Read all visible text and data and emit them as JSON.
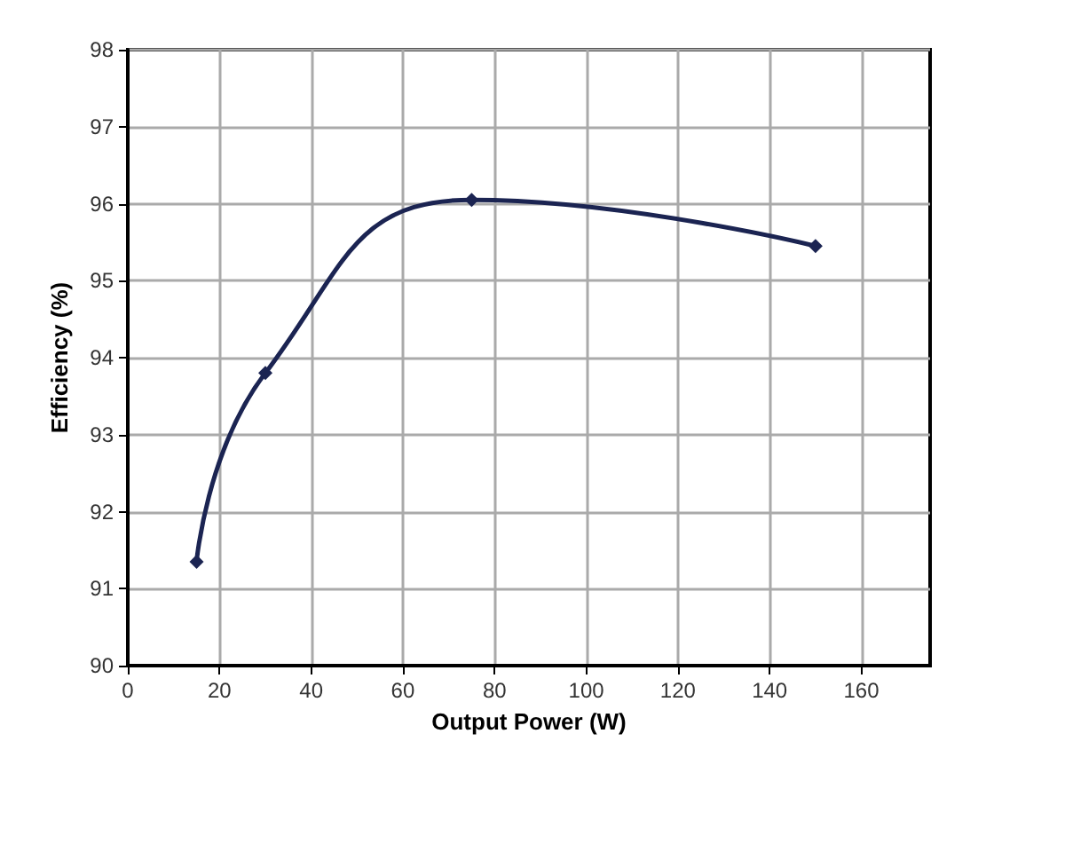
{
  "chart_data": {
    "type": "line",
    "xlabel": "Output Power (W)",
    "ylabel": "Efficiency (%)",
    "x": [
      15,
      30,
      75,
      150
    ],
    "series": [
      {
        "color": "#1b2452",
        "values": [
          91.35,
          93.8,
          96.05,
          95.45
        ]
      }
    ],
    "xlim": [
      0,
      175
    ],
    "xticks": [
      0,
      20,
      40,
      60,
      80,
      100,
      120,
      140,
      160
    ],
    "ylim": [
      90,
      98
    ],
    "yticks": [
      90,
      91,
      92,
      93,
      94,
      95,
      96,
      97,
      98
    ],
    "grid": true,
    "marker": "diamond",
    "line_style": "solid"
  }
}
